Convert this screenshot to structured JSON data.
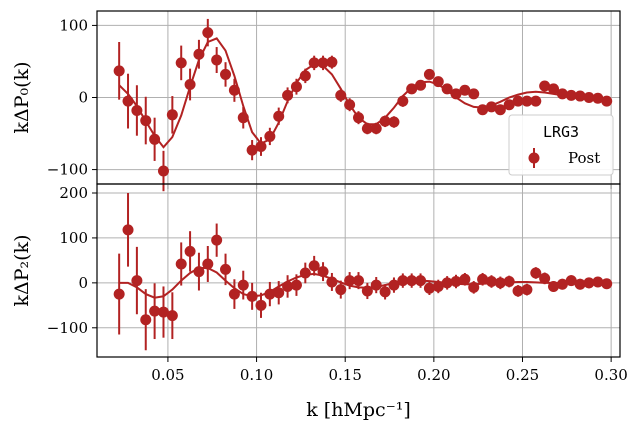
{
  "chart_data": {
    "type": "scatter",
    "color": "#b22222",
    "legend": {
      "title": "LRG3",
      "entry": "Post",
      "placement": "right"
    },
    "grid": true,
    "xlabel": "k [hMpc⁻¹]",
    "xlim": [
      0.01,
      0.305
    ],
    "xticks": [
      "0.05",
      "0.10",
      "0.15",
      "0.20",
      "0.25",
      "0.30"
    ],
    "xtick_values": [
      0.05,
      0.1,
      0.15,
      0.2,
      0.25,
      0.3
    ],
    "panels": [
      {
        "id": "p0",
        "ylabel": "kΔP₀(k)",
        "ylim": [
          -120,
          120
        ],
        "yticks": [
          "100",
          "0",
          "−100"
        ],
        "ytick_values": [
          100,
          0,
          -100
        ],
        "points": [
          {
            "x": 0.0225,
            "y": 37,
            "err": 40
          },
          {
            "x": 0.0275,
            "y": -5,
            "err": 38
          },
          {
            "x": 0.0325,
            "y": -18,
            "err": 35
          },
          {
            "x": 0.0375,
            "y": -32,
            "err": 33
          },
          {
            "x": 0.0425,
            "y": -58,
            "err": 30
          },
          {
            "x": 0.0475,
            "y": -102,
            "err": 28
          },
          {
            "x": 0.0525,
            "y": -24,
            "err": 26
          },
          {
            "x": 0.0575,
            "y": 48,
            "err": 24
          },
          {
            "x": 0.0625,
            "y": 18,
            "err": 22
          },
          {
            "x": 0.0675,
            "y": 60,
            "err": 20
          },
          {
            "x": 0.0725,
            "y": 90,
            "err": 19
          },
          {
            "x": 0.0775,
            "y": 52,
            "err": 18
          },
          {
            "x": 0.0825,
            "y": 32,
            "err": 17
          },
          {
            "x": 0.0875,
            "y": 10,
            "err": 16
          },
          {
            "x": 0.0925,
            "y": -28,
            "err": 15
          },
          {
            "x": 0.0975,
            "y": -73,
            "err": 14
          },
          {
            "x": 0.1025,
            "y": -68,
            "err": 13
          },
          {
            "x": 0.1075,
            "y": -54,
            "err": 12
          },
          {
            "x": 0.1125,
            "y": -26,
            "err": 12
          },
          {
            "x": 0.1175,
            "y": 3,
            "err": 11
          },
          {
            "x": 0.1225,
            "y": 15,
            "err": 11
          },
          {
            "x": 0.1275,
            "y": 30,
            "err": 10
          },
          {
            "x": 0.1325,
            "y": 48,
            "err": 10
          },
          {
            "x": 0.1375,
            "y": 48,
            "err": 10
          },
          {
            "x": 0.1425,
            "y": 49,
            "err": 9
          },
          {
            "x": 0.1475,
            "y": 3,
            "err": 9
          },
          {
            "x": 0.1525,
            "y": -10,
            "err": 9
          },
          {
            "x": 0.1575,
            "y": -28,
            "err": 9
          },
          {
            "x": 0.1625,
            "y": -43,
            "err": 8
          },
          {
            "x": 0.1675,
            "y": -43,
            "err": 8
          },
          {
            "x": 0.1725,
            "y": -33,
            "err": 8
          },
          {
            "x": 0.1775,
            "y": -34,
            "err": 8
          },
          {
            "x": 0.1825,
            "y": -5,
            "err": 8
          },
          {
            "x": 0.1875,
            "y": 12,
            "err": 7
          },
          {
            "x": 0.1925,
            "y": 17,
            "err": 7
          },
          {
            "x": 0.1975,
            "y": 32,
            "err": 7
          },
          {
            "x": 0.2025,
            "y": 22,
            "err": 7
          },
          {
            "x": 0.2075,
            "y": 12,
            "err": 7
          },
          {
            "x": 0.2125,
            "y": 5,
            "err": 7
          },
          {
            "x": 0.2175,
            "y": 10,
            "err": 6
          },
          {
            "x": 0.2225,
            "y": 5,
            "err": 6
          },
          {
            "x": 0.2275,
            "y": -17,
            "err": 6
          },
          {
            "x": 0.2325,
            "y": -13,
            "err": 6
          },
          {
            "x": 0.2375,
            "y": -17,
            "err": 6
          },
          {
            "x": 0.2425,
            "y": -10,
            "err": 6
          },
          {
            "x": 0.2475,
            "y": -5,
            "err": 6
          },
          {
            "x": 0.2525,
            "y": -5,
            "err": 6
          },
          {
            "x": 0.2575,
            "y": -5,
            "err": 6
          },
          {
            "x": 0.2625,
            "y": 16,
            "err": 6
          },
          {
            "x": 0.2675,
            "y": 12,
            "err": 6
          },
          {
            "x": 0.2725,
            "y": 5,
            "err": 5
          },
          {
            "x": 0.2775,
            "y": 3,
            "err": 5
          },
          {
            "x": 0.2825,
            "y": 2,
            "err": 5
          },
          {
            "x": 0.2875,
            "y": 0,
            "err": 5
          },
          {
            "x": 0.2925,
            "y": -1,
            "err": 5
          },
          {
            "x": 0.2975,
            "y": -5,
            "err": 5
          }
        ],
        "curve": [
          {
            "x": 0.0225,
            "y": 17
          },
          {
            "x": 0.0275,
            "y": 5
          },
          {
            "x": 0.0325,
            "y": -12
          },
          {
            "x": 0.0375,
            "y": -33
          },
          {
            "x": 0.0425,
            "y": -53
          },
          {
            "x": 0.0475,
            "y": -69
          },
          {
            "x": 0.0525,
            "y": -55
          },
          {
            "x": 0.0575,
            "y": -25
          },
          {
            "x": 0.0625,
            "y": 15
          },
          {
            "x": 0.0675,
            "y": 52
          },
          {
            "x": 0.0725,
            "y": 77
          },
          {
            "x": 0.0775,
            "y": 82
          },
          {
            "x": 0.0825,
            "y": 65
          },
          {
            "x": 0.0875,
            "y": 30
          },
          {
            "x": 0.0925,
            "y": -12
          },
          {
            "x": 0.0975,
            "y": -48
          },
          {
            "x": 0.1025,
            "y": -64
          },
          {
            "x": 0.1075,
            "y": -58
          },
          {
            "x": 0.1125,
            "y": -35
          },
          {
            "x": 0.1175,
            "y": -5
          },
          {
            "x": 0.1225,
            "y": 20
          },
          {
            "x": 0.1275,
            "y": 38
          },
          {
            "x": 0.1325,
            "y": 46
          },
          {
            "x": 0.1375,
            "y": 44
          },
          {
            "x": 0.1425,
            "y": 32
          },
          {
            "x": 0.1475,
            "y": 12
          },
          {
            "x": 0.1525,
            "y": -10
          },
          {
            "x": 0.1575,
            "y": -28
          },
          {
            "x": 0.1625,
            "y": -37
          },
          {
            "x": 0.1675,
            "y": -37
          },
          {
            "x": 0.1725,
            "y": -28
          },
          {
            "x": 0.1775,
            "y": -14
          },
          {
            "x": 0.1825,
            "y": 2
          },
          {
            "x": 0.1875,
            "y": 14
          },
          {
            "x": 0.1925,
            "y": 21
          },
          {
            "x": 0.1975,
            "y": 22
          },
          {
            "x": 0.2025,
            "y": 18
          },
          {
            "x": 0.2075,
            "y": 10
          },
          {
            "x": 0.2125,
            "y": 0
          },
          {
            "x": 0.2175,
            "y": -8
          },
          {
            "x": 0.2225,
            "y": -13
          },
          {
            "x": 0.2275,
            "y": -14
          },
          {
            "x": 0.2325,
            "y": -11
          },
          {
            "x": 0.2375,
            "y": -6
          },
          {
            "x": 0.2425,
            "y": 0
          },
          {
            "x": 0.2475,
            "y": 4
          },
          {
            "x": 0.2525,
            "y": 7
          },
          {
            "x": 0.2575,
            "y": 8
          },
          {
            "x": 0.2625,
            "y": 7
          },
          {
            "x": 0.2675,
            "y": 5
          },
          {
            "x": 0.2725,
            "y": 3
          },
          {
            "x": 0.2775,
            "y": 1
          },
          {
            "x": 0.2825,
            "y": -1
          },
          {
            "x": 0.2875,
            "y": -2
          },
          {
            "x": 0.2925,
            "y": -3
          },
          {
            "x": 0.2975,
            "y": -3
          }
        ]
      },
      {
        "id": "p2",
        "ylabel": "kΔP₂(k)",
        "ylim": [
          -165,
          220
        ],
        "yticks": [
          "200",
          "100",
          "0",
          "−100"
        ],
        "ytick_values": [
          200,
          100,
          0,
          -100
        ],
        "points": [
          {
            "x": 0.0225,
            "y": -25,
            "err": 90
          },
          {
            "x": 0.0275,
            "y": 118,
            "err": 82
          },
          {
            "x": 0.0325,
            "y": 5,
            "err": 75
          },
          {
            "x": 0.0375,
            "y": -82,
            "err": 68
          },
          {
            "x": 0.0425,
            "y": -63,
            "err": 62
          },
          {
            "x": 0.0475,
            "y": -65,
            "err": 57
          },
          {
            "x": 0.0525,
            "y": -73,
            "err": 52
          },
          {
            "x": 0.0575,
            "y": 42,
            "err": 48
          },
          {
            "x": 0.0625,
            "y": 70,
            "err": 45
          },
          {
            "x": 0.0675,
            "y": 25,
            "err": 42
          },
          {
            "x": 0.0725,
            "y": 42,
            "err": 40
          },
          {
            "x": 0.0775,
            "y": 95,
            "err": 37
          },
          {
            "x": 0.0825,
            "y": 30,
            "err": 35
          },
          {
            "x": 0.0875,
            "y": -25,
            "err": 33
          },
          {
            "x": 0.0925,
            "y": -5,
            "err": 32
          },
          {
            "x": 0.0975,
            "y": -30,
            "err": 30
          },
          {
            "x": 0.1025,
            "y": -50,
            "err": 28
          },
          {
            "x": 0.1075,
            "y": -25,
            "err": 27
          },
          {
            "x": 0.1125,
            "y": -22,
            "err": 26
          },
          {
            "x": 0.1175,
            "y": -8,
            "err": 25
          },
          {
            "x": 0.1225,
            "y": -5,
            "err": 24
          },
          {
            "x": 0.1275,
            "y": 22,
            "err": 23
          },
          {
            "x": 0.1325,
            "y": 38,
            "err": 22
          },
          {
            "x": 0.1375,
            "y": 25,
            "err": 21
          },
          {
            "x": 0.1425,
            "y": 2,
            "err": 20
          },
          {
            "x": 0.1475,
            "y": -15,
            "err": 20
          },
          {
            "x": 0.1525,
            "y": 5,
            "err": 19
          },
          {
            "x": 0.1575,
            "y": 5,
            "err": 19
          },
          {
            "x": 0.1625,
            "y": -18,
            "err": 18
          },
          {
            "x": 0.1675,
            "y": -5,
            "err": 18
          },
          {
            "x": 0.1725,
            "y": -20,
            "err": 17
          },
          {
            "x": 0.1775,
            "y": -5,
            "err": 17
          },
          {
            "x": 0.1825,
            "y": 5,
            "err": 16
          },
          {
            "x": 0.1875,
            "y": 5,
            "err": 16
          },
          {
            "x": 0.1925,
            "y": 5,
            "err": 16
          },
          {
            "x": 0.1975,
            "y": -12,
            "err": 15
          },
          {
            "x": 0.2025,
            "y": -8,
            "err": 15
          },
          {
            "x": 0.2075,
            "y": 0,
            "err": 15
          },
          {
            "x": 0.2125,
            "y": 3,
            "err": 15
          },
          {
            "x": 0.2175,
            "y": 8,
            "err": 14
          },
          {
            "x": 0.2225,
            "y": -10,
            "err": 14
          },
          {
            "x": 0.2275,
            "y": 8,
            "err": 14
          },
          {
            "x": 0.2325,
            "y": 3,
            "err": 14
          },
          {
            "x": 0.2375,
            "y": 0,
            "err": 14
          },
          {
            "x": 0.2425,
            "y": 3,
            "err": 13
          },
          {
            "x": 0.2475,
            "y": -18,
            "err": 13
          },
          {
            "x": 0.2525,
            "y": -15,
            "err": 13
          },
          {
            "x": 0.2575,
            "y": 22,
            "err": 13
          },
          {
            "x": 0.2625,
            "y": 10,
            "err": 13
          },
          {
            "x": 0.2675,
            "y": -8,
            "err": 12
          },
          {
            "x": 0.2725,
            "y": -3,
            "err": 12
          },
          {
            "x": 0.2775,
            "y": 5,
            "err": 12
          },
          {
            "x": 0.2825,
            "y": -3,
            "err": 12
          },
          {
            "x": 0.2875,
            "y": 0,
            "err": 12
          },
          {
            "x": 0.2925,
            "y": 2,
            "err": 11
          },
          {
            "x": 0.2975,
            "y": -2,
            "err": 11
          }
        ],
        "curve": [
          {
            "x": 0.0225,
            "y": 0
          },
          {
            "x": 0.0275,
            "y": 0
          },
          {
            "x": 0.0325,
            "y": -10
          },
          {
            "x": 0.0375,
            "y": -25
          },
          {
            "x": 0.0425,
            "y": -33
          },
          {
            "x": 0.0475,
            "y": -30
          },
          {
            "x": 0.0525,
            "y": -15
          },
          {
            "x": 0.0575,
            "y": 5
          },
          {
            "x": 0.0625,
            "y": 22
          },
          {
            "x": 0.0675,
            "y": 33
          },
          {
            "x": 0.0725,
            "y": 33
          },
          {
            "x": 0.0775,
            "y": 23
          },
          {
            "x": 0.0825,
            "y": 5
          },
          {
            "x": 0.0875,
            "y": -12
          },
          {
            "x": 0.0925,
            "y": -25
          },
          {
            "x": 0.0975,
            "y": -30
          },
          {
            "x": 0.1025,
            "y": -28
          },
          {
            "x": 0.1075,
            "y": -20
          },
          {
            "x": 0.1125,
            "y": -8
          },
          {
            "x": 0.1175,
            "y": 3
          },
          {
            "x": 0.1225,
            "y": 12
          },
          {
            "x": 0.1275,
            "y": 18
          },
          {
            "x": 0.1325,
            "y": 20
          },
          {
            "x": 0.1375,
            "y": 16
          },
          {
            "x": 0.1425,
            "y": 9
          },
          {
            "x": 0.1475,
            "y": 1
          },
          {
            "x": 0.1525,
            "y": -6
          },
          {
            "x": 0.1575,
            "y": -10
          },
          {
            "x": 0.1625,
            "y": -11
          },
          {
            "x": 0.1675,
            "y": -9
          },
          {
            "x": 0.1725,
            "y": -5
          },
          {
            "x": 0.1775,
            "y": 0
          },
          {
            "x": 0.1825,
            "y": 3
          },
          {
            "x": 0.1875,
            "y": 5
          },
          {
            "x": 0.1925,
            "y": 5
          },
          {
            "x": 0.1975,
            "y": 4
          },
          {
            "x": 0.2025,
            "y": 2
          },
          {
            "x": 0.2075,
            "y": 0
          },
          {
            "x": 0.2125,
            "y": -2
          },
          {
            "x": 0.2175,
            "y": -3
          },
          {
            "x": 0.2225,
            "y": -3
          },
          {
            "x": 0.2275,
            "y": -2
          },
          {
            "x": 0.2325,
            "y": -1
          },
          {
            "x": 0.2375,
            "y": 0
          },
          {
            "x": 0.2425,
            "y": 1
          },
          {
            "x": 0.2475,
            "y": 2
          },
          {
            "x": 0.2525,
            "y": 2
          },
          {
            "x": 0.2575,
            "y": 1
          },
          {
            "x": 0.2625,
            "y": 0
          },
          {
            "x": 0.2675,
            "y": 0
          },
          {
            "x": 0.2725,
            "y": -1
          },
          {
            "x": 0.2775,
            "y": -1
          },
          {
            "x": 0.2825,
            "y": -1
          },
          {
            "x": 0.2875,
            "y": 0
          },
          {
            "x": 0.2925,
            "y": 0
          },
          {
            "x": 0.2975,
            "y": 0
          }
        ]
      }
    ]
  }
}
